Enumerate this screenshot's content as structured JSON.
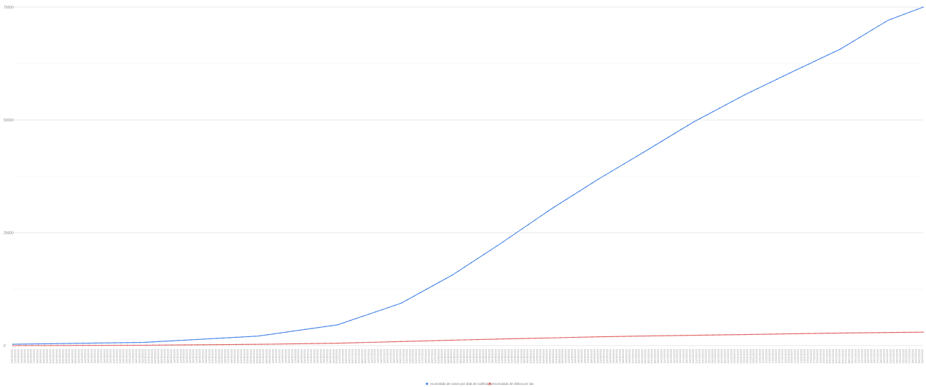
{
  "chart_data": {
    "type": "line",
    "title": "",
    "xlabel": "",
    "ylabel": "",
    "x_start": "2020-03-20",
    "x_end": "2020-12-31",
    "x_count": 287,
    "ylim": [
      0,
      75000
    ],
    "yticks": [
      0,
      25000,
      50000,
      75000
    ],
    "ytick_labels": [
      "0",
      "25000",
      "50000",
      "75000"
    ],
    "grid": true,
    "legend": "bottom",
    "series": [
      {
        "name": "Acumulado de casos por data de notificação",
        "color": "#4a86e8",
        "x": [
          "2020-03-20",
          "2020-04-30",
          "2020-06-05",
          "2020-06-30",
          "2020-07-20",
          "2020-08-05",
          "2020-08-20",
          "2020-09-05",
          "2020-09-20",
          "2020-10-05",
          "2020-10-20",
          "2020-11-05",
          "2020-11-20",
          "2020-12-05",
          "2020-12-20",
          "2020-12-31"
        ],
        "values": [
          300,
          700,
          2100,
          4600,
          9400,
          15600,
          22500,
          30200,
          36900,
          43200,
          49600,
          55600,
          60700,
          65700,
          72100,
          75000
        ]
      },
      {
        "name": "Acumulado de óbitos por dia",
        "color": "#e06666",
        "x": [
          "2020-03-20",
          "2020-04-30",
          "2020-06-05",
          "2020-06-30",
          "2020-07-20",
          "2020-08-05",
          "2020-08-20",
          "2020-09-05",
          "2020-09-20",
          "2020-10-05",
          "2020-10-20",
          "2020-11-05",
          "2020-11-20",
          "2020-12-05",
          "2020-12-20",
          "2020-12-31"
        ],
        "values": [
          0,
          80,
          280,
          520,
          900,
          1200,
          1450,
          1700,
          1950,
          2130,
          2280,
          2450,
          2620,
          2780,
          2900,
          2980
        ]
      }
    ]
  }
}
